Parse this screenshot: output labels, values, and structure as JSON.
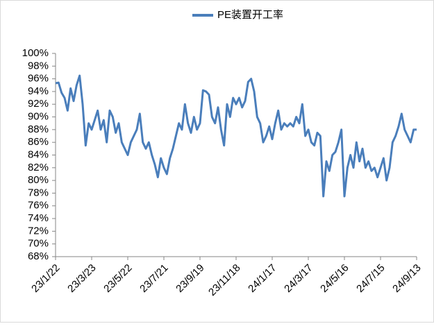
{
  "chart_data": {
    "type": "line",
    "categories": [
      "23/1/22",
      null,
      null,
      null,
      null,
      null,
      null,
      null,
      null,
      null,
      null,
      null,
      "23/3/23",
      null,
      null,
      null,
      null,
      null,
      null,
      null,
      null,
      null,
      null,
      null,
      "23/5/22",
      null,
      null,
      null,
      null,
      null,
      null,
      null,
      null,
      null,
      null,
      null,
      "23/7/21",
      null,
      null,
      null,
      null,
      null,
      null,
      null,
      null,
      null,
      null,
      null,
      "23/9/19",
      null,
      null,
      null,
      null,
      null,
      null,
      null,
      null,
      null,
      null,
      null,
      "23/11/18",
      null,
      null,
      null,
      null,
      null,
      null,
      null,
      null,
      null,
      null,
      null,
      "24/1/17",
      null,
      null,
      null,
      null,
      null,
      null,
      null,
      null,
      null,
      null,
      null,
      "24/3/17",
      null,
      null,
      null,
      null,
      null,
      null,
      null,
      null,
      null,
      null,
      null,
      "24/5/16",
      null,
      null,
      null,
      null,
      null,
      null,
      null,
      null,
      null,
      null,
      null,
      "24/7/15",
      null,
      null,
      null,
      null,
      null,
      null,
      null,
      null,
      null,
      null,
      null,
      "24/9/13"
    ],
    "series": [
      {
        "name": "PE装置开工率",
        "color": "#4a7ebb",
        "values": [
          95.3,
          95.4,
          93.8,
          93,
          91,
          94.5,
          92.5,
          95,
          96.5,
          92,
          85.5,
          89,
          88,
          89.5,
          91,
          88,
          89.5,
          86,
          91,
          90,
          87.5,
          89,
          86,
          85,
          84,
          86,
          87,
          88,
          90.5,
          86,
          85,
          86,
          84,
          82.5,
          80.5,
          83.5,
          82,
          81,
          83.5,
          85,
          87,
          89,
          88,
          92,
          89,
          87.5,
          90,
          88,
          89,
          94.2,
          94,
          93.5,
          90,
          89,
          91.5,
          88,
          85.5,
          92,
          90,
          93,
          92,
          93,
          91.5,
          92.5,
          95.5,
          96,
          94,
          90,
          89,
          86,
          87,
          88.5,
          86.5,
          89,
          91,
          88,
          89,
          88.5,
          89,
          88.5,
          90,
          89,
          92,
          87,
          88,
          86,
          85.5,
          87.5,
          87,
          77.5,
          83,
          81.5,
          84,
          84.5,
          86,
          88,
          77.5,
          82,
          84,
          82,
          86,
          83,
          85,
          82,
          83,
          81.5,
          82,
          80.5,
          82,
          83.5,
          80,
          82,
          86,
          87,
          88.5,
          90.5,
          88,
          87,
          86,
          88,
          88
        ]
      }
    ],
    "ylim": [
      68,
      100
    ],
    "yticks": [
      {
        "value": 68,
        "label": "68%"
      },
      {
        "value": 70,
        "label": "70%"
      },
      {
        "value": 72,
        "label": "72%"
      },
      {
        "value": 74,
        "label": "74%"
      },
      {
        "value": 76,
        "label": "76%"
      },
      {
        "value": 78,
        "label": "78%"
      },
      {
        "value": 80,
        "label": "80%"
      },
      {
        "value": 82,
        "label": "82%"
      },
      {
        "value": 84,
        "label": "84%"
      },
      {
        "value": 86,
        "label": "86%"
      },
      {
        "value": 88,
        "label": "88%"
      },
      {
        "value": 90,
        "label": "90%"
      },
      {
        "value": 92,
        "label": "92%"
      },
      {
        "value": 94,
        "label": "94%"
      },
      {
        "value": 96,
        "label": "96%"
      },
      {
        "value": 98,
        "label": "98%"
      },
      {
        "value": 100,
        "label": "100%"
      }
    ],
    "grid": false,
    "legend": "top"
  }
}
